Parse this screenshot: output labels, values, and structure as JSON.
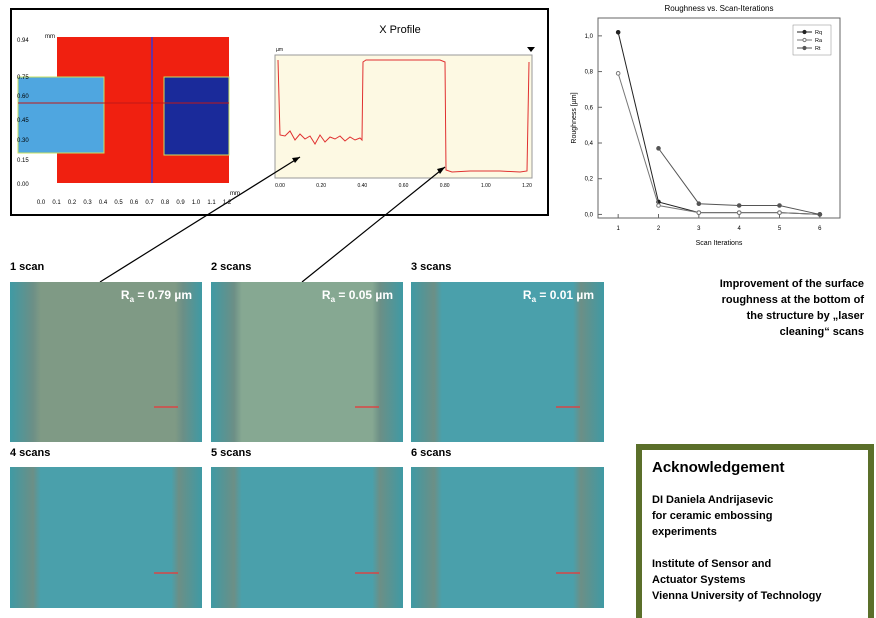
{
  "height_map": {
    "unit_y": "mm",
    "unit_x": "mm",
    "yticks": [
      "0.94",
      "0.75",
      "0.60",
      "0.45",
      "0.30",
      "0.15",
      "0.00"
    ],
    "xticks": [
      "0.0",
      "0.1",
      "0.2",
      "0.3",
      "0.4",
      "0.5",
      "0.6",
      "0.7",
      "0.8",
      "0.9",
      "1.0",
      "1.1",
      "1.2"
    ]
  },
  "profile": {
    "title": "X Profile",
    "unit": "µm",
    "xticks": [
      "0.00",
      "0.20",
      "0.40",
      "0.60",
      "0.80",
      "1.00",
      "1.20"
    ]
  },
  "roughness_chart": {
    "type": "line",
    "title": "Roughness vs. Scan-Iterations",
    "x_label": "Scan Iterations",
    "y_label": "Roughness [µm]",
    "x": [
      1,
      2,
      3,
      4,
      5,
      6
    ],
    "series": [
      {
        "name": "Rq",
        "color": "#222222",
        "marker": "filled",
        "values": [
          1.02,
          0.07,
          0.01,
          0.01,
          0.01,
          0.0
        ]
      },
      {
        "name": "Ra",
        "color": "#777777",
        "marker": "open",
        "values": [
          0.79,
          0.05,
          0.01,
          0.01,
          0.01,
          0.0
        ]
      },
      {
        "name": "Rt",
        "color": "#555555",
        "marker": "filled",
        "values": [
          null,
          0.37,
          0.06,
          0.05,
          0.05,
          0.0
        ]
      }
    ],
    "xlim": [
      0.5,
      6.5
    ],
    "ylim": [
      -0.02,
      1.1
    ],
    "xticks": [
      1,
      2,
      3,
      4,
      5,
      6
    ],
    "yticks": [
      {
        "value": 0,
        "label": "0,0"
      },
      {
        "value": 0.2,
        "label": "0,2"
      },
      {
        "value": 0.4,
        "label": "0,4"
      },
      {
        "value": 0.6,
        "label": "0,6"
      },
      {
        "value": 0.8,
        "label": "0,8"
      },
      {
        "value": 1.0,
        "label": "1,0"
      }
    ]
  },
  "caption": [
    "Improvement of the surface",
    "roughness at the bottom of",
    "the structure by „laser",
    "cleaning“ scans"
  ],
  "images": [
    {
      "label": "1 scan",
      "ra": {
        "symbol": "R",
        "sub": "a",
        "text": " = 0.79 µm"
      }
    },
    {
      "label": "2 scans",
      "ra": {
        "symbol": "R",
        "sub": "a",
        "text": " = 0.05 µm"
      }
    },
    {
      "label": "3 scans",
      "ra": {
        "symbol": "R",
        "sub": "a",
        "text": " = 0.01 µm"
      }
    },
    {
      "label": "4 scans"
    },
    {
      "label": "5 scans"
    },
    {
      "label": "6 scans"
    }
  ],
  "acknowledgement": {
    "title": "Acknowledgement",
    "lines": [
      "DI Daniela Andrijasevic",
      "for ceramic embossing",
      "experiments",
      "",
      "Institute of Sensor and",
      "Actuator Systems",
      "Vienna University of Technology"
    ]
  }
}
